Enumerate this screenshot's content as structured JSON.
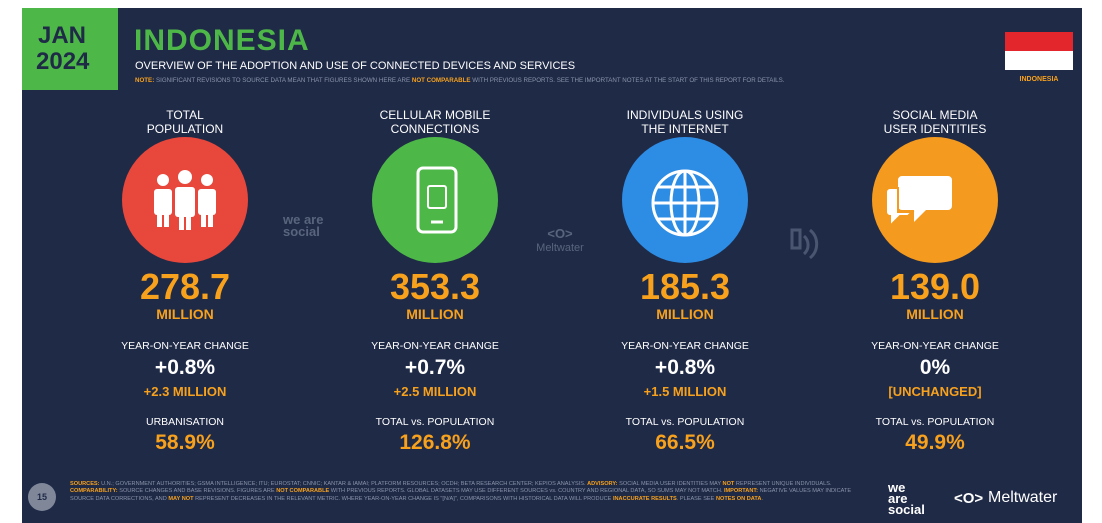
{
  "header": {
    "month": "JAN",
    "year": "2024",
    "title": "INDONESIA",
    "subtitle": "OVERVIEW OF THE ADOPTION AND USE OF CONNECTED DEVICES AND SERVICES",
    "note": [
      {
        "text": "NOTE:",
        "emphasis": true
      },
      {
        "text": " SIGNIFICANT REVISIONS TO SOURCE DATA MEAN THAT FIGURES SHOWN HERE ARE ",
        "emphasis": false
      },
      {
        "text": "NOT COMPARABLE",
        "emphasis": true
      },
      {
        "text": " WITH PREVIOUS REPORTS. SEE THE IMPORTANT NOTES AT THE START OF THIS REPORT FOR DETAILS.",
        "emphasis": false
      }
    ],
    "flag_label": "INDONESIA"
  },
  "columns": [
    {
      "heading": [
        "TOTAL",
        "POPULATION"
      ],
      "color": "#e8473b",
      "value": "278.7",
      "unit": "MILLION",
      "change_label": "YEAR-ON-YEAR CHANGE",
      "change": "+0.8%",
      "change_detail": "+2.3 MILLION",
      "stat_label": "URBANISATION",
      "stat": "58.9%"
    },
    {
      "heading": [
        "CELLULAR MOBILE",
        "CONNECTIONS"
      ],
      "color": "#4db848",
      "value": "353.3",
      "unit": "MILLION",
      "change_label": "YEAR-ON-YEAR CHANGE",
      "change": "+0.7%",
      "change_detail": "+2.5 MILLION",
      "stat_label": "TOTAL vs. POPULATION",
      "stat": "126.8%"
    },
    {
      "heading": [
        "INDIVIDUALS USING",
        "THE INTERNET"
      ],
      "color": "#2d8ce3",
      "value": "185.3",
      "unit": "MILLION",
      "change_label": "YEAR-ON-YEAR CHANGE",
      "change": "+0.8%",
      "change_detail": "+1.5 MILLION",
      "stat_label": "TOTAL vs. POPULATION",
      "stat": "66.5%"
    },
    {
      "heading": [
        "SOCIAL MEDIA",
        "USER IDENTITIES"
      ],
      "color": "#f39a1f",
      "value": "139.0",
      "unit": "MILLION",
      "change_label": "YEAR-ON-YEAR CHANGE",
      "change": "0%",
      "change_detail": "[UNCHANGED]",
      "stat_label": "TOTAL vs. POPULATION",
      "stat": "49.9%"
    }
  ],
  "watermarks": [
    "we are social",
    "Meltwater"
  ],
  "footer": {
    "page": "15",
    "sources": [
      {
        "text": "SOURCES:",
        "emphasis": true
      },
      {
        "text": " U.N.; GOVERNMENT AUTHORITIES; GSMA INTELLIGENCE; ITU; EUROSTAT; CNNIC; KANTAR & IAMAI; PLATFORM RESOURCES; OCDH; BETA RESEARCH CENTER; KEPIOS ANALYSIS. ",
        "emphasis": false
      },
      {
        "text": "ADVISORY:",
        "emphasis": true
      },
      {
        "text": " SOCIAL MEDIA USER IDENTITIES MAY ",
        "emphasis": false
      },
      {
        "text": "NOT",
        "emphasis": true
      },
      {
        "text": " REPRESENT UNIQUE INDIVIDUALS. ",
        "emphasis": false
      },
      {
        "text": "COMPARABILITY:",
        "emphasis": true
      },
      {
        "text": " SOURCE CHANGES AND BASE REVISIONS. FIGURES ARE ",
        "emphasis": false
      },
      {
        "text": "NOT COMPARABLE",
        "emphasis": true
      },
      {
        "text": " WITH PREVIOUS REPORTS. GLOBAL DATASETS MAY USE DIFFERENT SOURCES vs. COUNTRY AND REGIONAL DATA, SO SUMS MAY NOT MATCH. ",
        "emphasis": false
      },
      {
        "text": "IMPORTANT:",
        "emphasis": true
      },
      {
        "text": " NEGATIVE VALUES MAY INDICATE SOURCE DATA CORRECTIONS, AND ",
        "emphasis": false
      },
      {
        "text": "MAY NOT",
        "emphasis": true
      },
      {
        "text": " REPRESENT DECREASES IN THE RELEVANT METRIC. WHERE YEAR-ON-YEAR CHANGE IS \"[N/A]\", COMPARISONS WITH HISTORICAL DATA WILL PRODUCE ",
        "emphasis": false
      },
      {
        "text": "INACCURATE RESULTS",
        "emphasis": true
      },
      {
        "text": ". PLEASE SEE ",
        "emphasis": false
      },
      {
        "text": "NOTES ON DATA",
        "emphasis": true
      },
      {
        "text": ".",
        "emphasis": false
      }
    ],
    "logos": [
      "we are social",
      "Meltwater"
    ]
  }
}
